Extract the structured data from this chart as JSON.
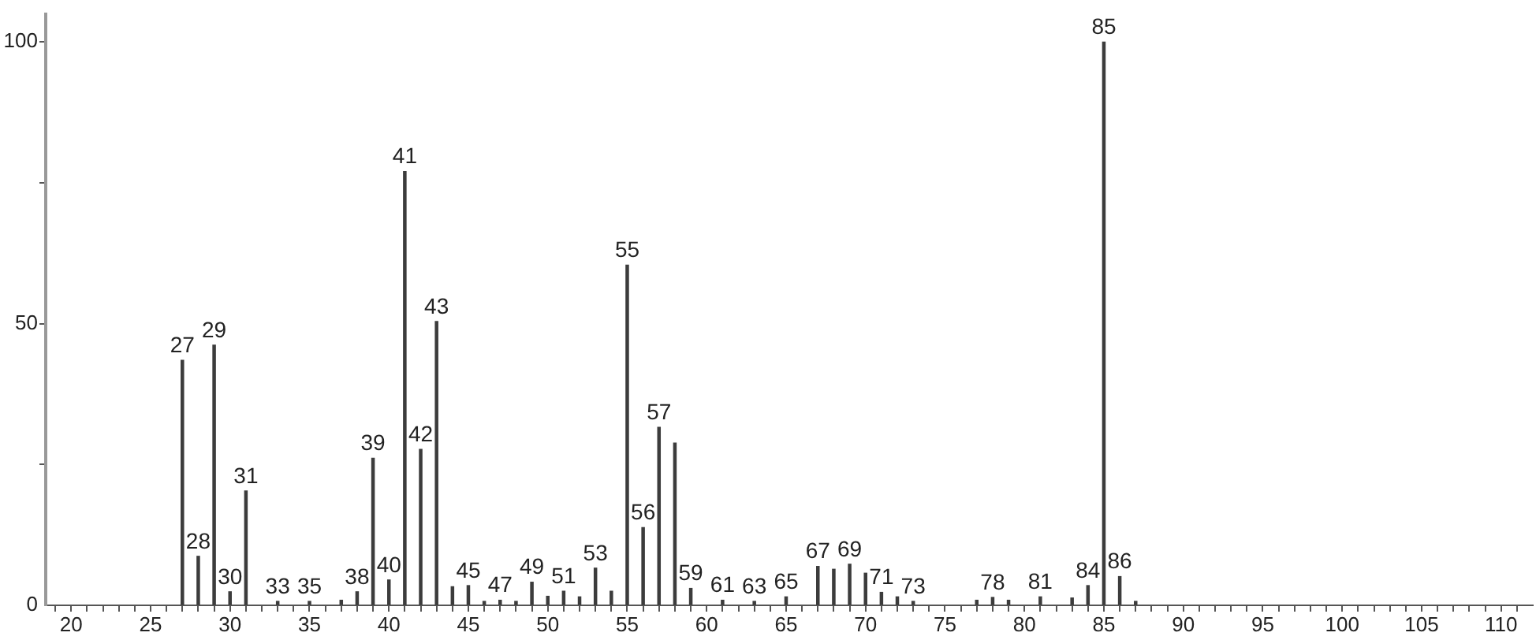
{
  "chart_data": {
    "type": "bar",
    "x": [
      27,
      28,
      29,
      30,
      31,
      33,
      35,
      37,
      38,
      39,
      40,
      41,
      42,
      43,
      44,
      45,
      46,
      47,
      48,
      49,
      50,
      51,
      52,
      53,
      54,
      55,
      56,
      57,
      58,
      59,
      61,
      63,
      65,
      67,
      68,
      69,
      70,
      71,
      72,
      73,
      77,
      78,
      79,
      81,
      83,
      84,
      85,
      86,
      87
    ],
    "values": [
      43.5,
      8.7,
      46.2,
      2.4,
      20.3,
      0.7,
      0.7,
      0.9,
      2.4,
      26.1,
      4.5,
      77,
      27.7,
      50.4,
      3.3,
      3.5,
      0.7,
      0.9,
      0.7,
      4.1,
      1.6,
      2.5,
      1.5,
      6.6,
      2.5,
      60.4,
      13.8,
      31.6,
      28.8,
      3.0,
      0.9,
      0.7,
      1.5,
      6.9,
      6.4,
      7.3,
      5.7,
      2.3,
      1.5,
      0.7,
      0.9,
      1.4,
      0.9,
      1.5,
      1.3,
      3.5,
      100,
      5.1,
      0.7
    ],
    "annotations": [
      {
        "text": "27",
        "x": 27,
        "y": 43.5
      },
      {
        "text": "28",
        "x": 28,
        "y": 8.7
      },
      {
        "text": "29",
        "x": 29,
        "y": 46.2
      },
      {
        "text": "30",
        "x": 30,
        "y": 2.4
      },
      {
        "text": "31",
        "x": 31,
        "y": 20.3
      },
      {
        "text": "33",
        "x": 33,
        "y": 0.7
      },
      {
        "text": "35",
        "x": 35,
        "y": 0.7
      },
      {
        "text": "38",
        "x": 38,
        "y": 2.4
      },
      {
        "text": "39",
        "x": 39,
        "y": 26.1
      },
      {
        "text": "40",
        "x": 40,
        "y": 4.5
      },
      {
        "text": "41",
        "x": 41,
        "y": 77
      },
      {
        "text": "42",
        "x": 42,
        "y": 27.7
      },
      {
        "text": "43",
        "x": 43,
        "y": 50.4
      },
      {
        "text": "45",
        "x": 45,
        "y": 3.5
      },
      {
        "text": "47",
        "x": 47,
        "y": 0.9
      },
      {
        "text": "49",
        "x": 49,
        "y": 4.1
      },
      {
        "text": "51",
        "x": 51,
        "y": 2.5
      },
      {
        "text": "53",
        "x": 53,
        "y": 6.6
      },
      {
        "text": "55",
        "x": 55,
        "y": 60.4
      },
      {
        "text": "56",
        "x": 56,
        "y": 13.8
      },
      {
        "text": "57",
        "x": 57,
        "y": 31.6
      },
      {
        "text": "59",
        "x": 59,
        "y": 3.0
      },
      {
        "text": "61",
        "x": 61,
        "y": 0.9
      },
      {
        "text": "63",
        "x": 63,
        "y": 0.7
      },
      {
        "text": "65",
        "x": 65,
        "y": 1.5
      },
      {
        "text": "67",
        "x": 67,
        "y": 6.9
      },
      {
        "text": "69",
        "x": 69,
        "y": 7.3
      },
      {
        "text": "71",
        "x": 71,
        "y": 2.3
      },
      {
        "text": "73",
        "x": 73,
        "y": 0.7
      },
      {
        "text": "78",
        "x": 78,
        "y": 1.4
      },
      {
        "text": "81",
        "x": 81,
        "y": 1.5
      },
      {
        "text": "84",
        "x": 84,
        "y": 3.5
      },
      {
        "text": "85",
        "x": 85,
        "y": 100
      },
      {
        "text": "86",
        "x": 86,
        "y": 5.1
      }
    ],
    "color": "#3c3c3c",
    "xlim": [
      18.4,
      112
    ],
    "xticks": [
      {
        "value": 19,
        "label": null
      },
      20,
      {
        "value": 21,
        "label": null
      },
      {
        "value": 22,
        "label": null
      },
      {
        "value": 23,
        "label": null
      },
      {
        "value": 24,
        "label": null
      },
      25,
      {
        "value": 26,
        "label": null
      },
      {
        "value": 27,
        "label": null
      },
      {
        "value": 28,
        "label": null
      },
      {
        "value": 29,
        "label": null
      },
      30,
      {
        "value": 31,
        "label": null
      },
      {
        "value": 32,
        "label": null
      },
      {
        "value": 33,
        "label": null
      },
      {
        "value": 34,
        "label": null
      },
      35,
      {
        "value": 36,
        "label": null
      },
      {
        "value": 37,
        "label": null
      },
      {
        "value": 38,
        "label": null
      },
      {
        "value": 39,
        "label": null
      },
      40,
      {
        "value": 41,
        "label": null
      },
      {
        "value": 42,
        "label": null
      },
      {
        "value": 43,
        "label": null
      },
      {
        "value": 44,
        "label": null
      },
      45,
      {
        "value": 46,
        "label": null
      },
      {
        "value": 47,
        "label": null
      },
      {
        "value": 48,
        "label": null
      },
      {
        "value": 49,
        "label": null
      },
      50,
      {
        "value": 51,
        "label": null
      },
      {
        "value": 52,
        "label": null
      },
      {
        "value": 53,
        "label": null
      },
      {
        "value": 54,
        "label": null
      },
      55,
      {
        "value": 56,
        "label": null
      },
      {
        "value": 57,
        "label": null
      },
      {
        "value": 58,
        "label": null
      },
      {
        "value": 59,
        "label": null
      },
      60,
      {
        "value": 61,
        "label": null
      },
      {
        "value": 62,
        "label": null
      },
      {
        "value": 63,
        "label": null
      },
      {
        "value": 64,
        "label": null
      },
      65,
      {
        "value": 66,
        "label": null
      },
      {
        "value": 67,
        "label": null
      },
      {
        "value": 68,
        "label": null
      },
      {
        "value": 69,
        "label": null
      },
      70,
      {
        "value": 71,
        "label": null
      },
      {
        "value": 72,
        "label": null
      },
      {
        "value": 73,
        "label": null
      },
      {
        "value": 74,
        "label": null
      },
      75,
      {
        "value": 76,
        "label": null
      },
      {
        "value": 77,
        "label": null
      },
      {
        "value": 78,
        "label": null
      },
      {
        "value": 79,
        "label": null
      },
      80,
      {
        "value": 81,
        "label": null
      },
      {
        "value": 82,
        "label": null
      },
      {
        "value": 83,
        "label": null
      },
      {
        "value": 84,
        "label": null
      },
      85,
      {
        "value": 86,
        "label": null
      },
      {
        "value": 87,
        "label": null
      },
      {
        "value": 88,
        "label": null
      },
      {
        "value": 89,
        "label": null
      },
      90,
      {
        "value": 91,
        "label": null
      },
      {
        "value": 92,
        "label": null
      },
      {
        "value": 93,
        "label": null
      },
      {
        "value": 94,
        "label": null
      },
      95,
      {
        "value": 96,
        "label": null
      },
      {
        "value": 97,
        "label": null
      },
      {
        "value": 98,
        "label": null
      },
      {
        "value": 99,
        "label": null
      },
      100,
      {
        "value": 101,
        "label": null
      },
      {
        "value": 102,
        "label": null
      },
      {
        "value": 103,
        "label": null
      },
      {
        "value": 104,
        "label": null
      },
      105,
      {
        "value": 106,
        "label": null
      },
      {
        "value": 107,
        "label": null
      },
      {
        "value": 108,
        "label": null
      },
      {
        "value": 109,
        "label": null
      },
      110,
      {
        "value": 111,
        "label": null
      }
    ],
    "ylim": [
      0,
      105
    ],
    "yticks": [
      0,
      {
        "value": 25,
        "label": null
      },
      50,
      {
        "value": 75,
        "label": null
      },
      100
    ],
    "grid": false
  }
}
